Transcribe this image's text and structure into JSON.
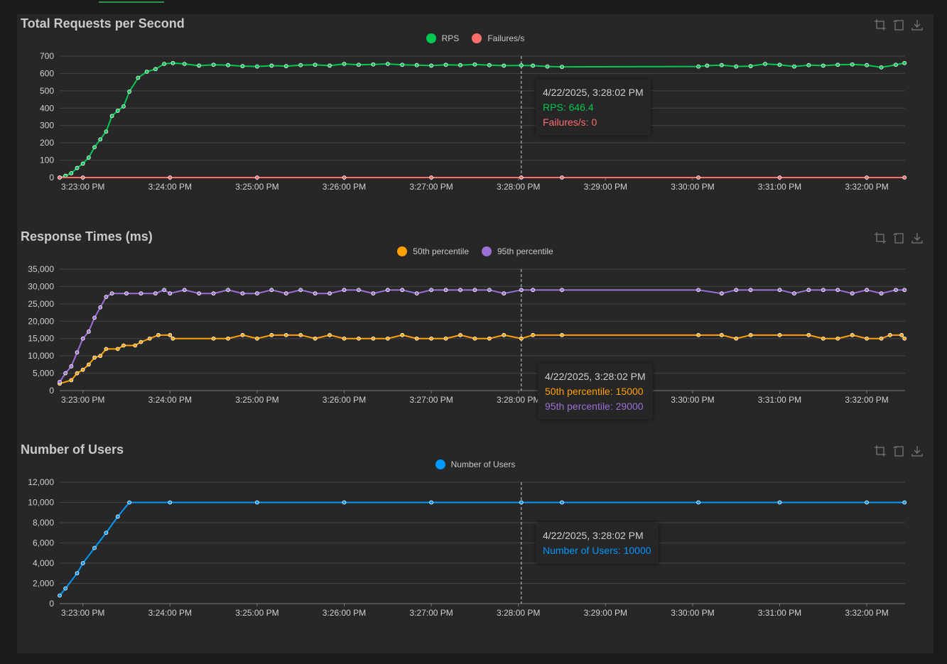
{
  "colors": {
    "rps": "#00c853",
    "failures": "#ff6d6d",
    "p50": "#ffa000",
    "p95": "#9c6fd6",
    "users": "#0099ff",
    "grid": "#444444",
    "axis": "#d0d0d0"
  },
  "toolbox": {
    "zoom": "zoom-icon",
    "restore": "restore-icon",
    "save": "download-icon"
  },
  "charts": [
    {
      "title": "Total Requests per Second",
      "legend": [
        "RPS",
        "Failures/s"
      ],
      "tooltip": {
        "time": "4/22/2025, 3:28:02 PM",
        "lines": [
          "RPS: 646.4",
          "Failures/s: 0"
        ]
      }
    },
    {
      "title": "Response Times (ms)",
      "legend": [
        "50th percentile",
        "95th percentile"
      ],
      "tooltip": {
        "time": "4/22/2025, 3:28:02 PM",
        "lines": [
          "50th percentile: 15000",
          "95th percentile: 29000"
        ]
      }
    },
    {
      "title": "Number of Users",
      "legend": [
        "Number of Users"
      ],
      "tooltip": {
        "time": "4/22/2025, 3:28:02 PM",
        "lines": [
          "Number of Users: 10000"
        ]
      }
    }
  ],
  "chart_data": [
    {
      "type": "line",
      "title": "Total Requests per Second",
      "x_ticks": [
        "3:23:00 PM",
        "3:24:00 PM",
        "3:25:00 PM",
        "3:26:00 PM",
        "3:27:00 PM",
        "3:28:00 PM",
        "3:29:00 PM",
        "3:30:00 PM",
        "3:31:00 PM",
        "3:32:00 PM"
      ],
      "y_ticks": [
        "0",
        "100",
        "200",
        "300",
        "400",
        "500",
        "600",
        "700"
      ],
      "ylim": [
        0,
        700
      ],
      "crosshair_time": "3:28:02 PM",
      "series": [
        {
          "name": "RPS",
          "color": "#00c853",
          "points": [
            [
              "3:22:44 PM",
              0
            ],
            [
              "3:22:48 PM",
              10
            ],
            [
              "3:22:52 PM",
              25
            ],
            [
              "3:22:56 PM",
              55
            ],
            [
              "3:23:00 PM",
              80
            ],
            [
              "3:23:04 PM",
              115
            ],
            [
              "3:23:08 PM",
              175
            ],
            [
              "3:23:12 PM",
              220
            ],
            [
              "3:23:16 PM",
              265
            ],
            [
              "3:23:20 PM",
              355
            ],
            [
              "3:23:24 PM",
              385
            ],
            [
              "3:23:28 PM",
              410
            ],
            [
              "3:23:32 PM",
              495
            ],
            [
              "3:23:38 PM",
              575
            ],
            [
              "3:23:44 PM",
              610
            ],
            [
              "3:23:50 PM",
              625
            ],
            [
              "3:23:56 PM",
              655
            ],
            [
              "3:24:02 PM",
              660
            ],
            [
              "3:24:10 PM",
              655
            ],
            [
              "3:24:20 PM",
              645
            ],
            [
              "3:24:30 PM",
              650
            ],
            [
              "3:24:40 PM",
              648
            ],
            [
              "3:24:50 PM",
              642
            ],
            [
              "3:25:00 PM",
              640
            ],
            [
              "3:25:10 PM",
              645
            ],
            [
              "3:25:20 PM",
              642
            ],
            [
              "3:25:30 PM",
              648
            ],
            [
              "3:25:40 PM",
              650
            ],
            [
              "3:25:50 PM",
              645
            ],
            [
              "3:26:00 PM",
              655
            ],
            [
              "3:26:10 PM",
              650
            ],
            [
              "3:26:20 PM",
              652
            ],
            [
              "3:26:30 PM",
              655
            ],
            [
              "3:26:40 PM",
              650
            ],
            [
              "3:26:50 PM",
              648
            ],
            [
              "3:27:00 PM",
              645
            ],
            [
              "3:27:10 PM",
              650
            ],
            [
              "3:27:20 PM",
              648
            ],
            [
              "3:27:30 PM",
              652
            ],
            [
              "3:27:40 PM",
              648
            ],
            [
              "3:27:50 PM",
              645
            ],
            [
              "3:28:02 PM",
              646.4
            ],
            [
              "3:28:10 PM",
              645
            ],
            [
              "3:28:20 PM",
              640
            ],
            [
              "3:28:30 PM",
              638
            ],
            [
              "3:30:04 PM",
              640
            ],
            [
              "3:30:10 PM",
              645
            ],
            [
              "3:30:20 PM",
              648
            ],
            [
              "3:30:30 PM",
              640
            ],
            [
              "3:30:40 PM",
              642
            ],
            [
              "3:30:50 PM",
              655
            ],
            [
              "3:31:00 PM",
              650
            ],
            [
              "3:31:10 PM",
              640
            ],
            [
              "3:31:20 PM",
              648
            ],
            [
              "3:31:30 PM",
              645
            ],
            [
              "3:31:40 PM",
              650
            ],
            [
              "3:31:50 PM",
              652
            ],
            [
              "3:32:00 PM",
              648
            ],
            [
              "3:32:10 PM",
              635
            ],
            [
              "3:32:20 PM",
              650
            ],
            [
              "3:32:26 PM",
              660
            ]
          ]
        },
        {
          "name": "Failures/s",
          "color": "#ff6d6d",
          "points": [
            [
              "3:22:44 PM",
              0
            ],
            [
              "3:23:00 PM",
              0
            ],
            [
              "3:24:00 PM",
              0
            ],
            [
              "3:25:00 PM",
              0
            ],
            [
              "3:26:00 PM",
              0
            ],
            [
              "3:27:00 PM",
              0
            ],
            [
              "3:28:02 PM",
              0
            ],
            [
              "3:28:30 PM",
              0
            ],
            [
              "3:30:04 PM",
              0
            ],
            [
              "3:31:00 PM",
              0
            ],
            [
              "3:32:00 PM",
              0
            ],
            [
              "3:32:26 PM",
              0
            ]
          ]
        }
      ]
    },
    {
      "type": "line",
      "title": "Response Times (ms)",
      "x_ticks": [
        "3:23:00 PM",
        "3:24:00 PM",
        "3:25:00 PM",
        "3:26:00 PM",
        "3:27:00 PM",
        "3:28:00 PM",
        "3:29:00 PM",
        "3:30:00 PM",
        "3:31:00 PM",
        "3:32:00 PM"
      ],
      "y_ticks": [
        "0",
        "5,000",
        "10,000",
        "15,000",
        "20,000",
        "25,000",
        "30,000",
        "35,000"
      ],
      "ylim": [
        0,
        35000
      ],
      "crosshair_time": "3:28:02 PM",
      "series": [
        {
          "name": "50th percentile",
          "color": "#ffa000",
          "points": [
            [
              "3:22:44 PM",
              2000
            ],
            [
              "3:22:52 PM",
              3000
            ],
            [
              "3:22:56 PM",
              5000
            ],
            [
              "3:23:00 PM",
              6000
            ],
            [
              "3:23:04 PM",
              7500
            ],
            [
              "3:23:08 PM",
              9500
            ],
            [
              "3:23:12 PM",
              10000
            ],
            [
              "3:23:16 PM",
              12000
            ],
            [
              "3:23:24 PM",
              12000
            ],
            [
              "3:23:28 PM",
              13000
            ],
            [
              "3:23:36 PM",
              13000
            ],
            [
              "3:23:40 PM",
              14000
            ],
            [
              "3:23:46 PM",
              15000
            ],
            [
              "3:23:52 PM",
              16000
            ],
            [
              "3:24:00 PM",
              16000
            ],
            [
              "3:24:02 PM",
              15000
            ],
            [
              "3:24:30 PM",
              15000
            ],
            [
              "3:24:40 PM",
              15000
            ],
            [
              "3:24:50 PM",
              16000
            ],
            [
              "3:25:00 PM",
              15000
            ],
            [
              "3:25:10 PM",
              16000
            ],
            [
              "3:25:20 PM",
              16000
            ],
            [
              "3:25:30 PM",
              16000
            ],
            [
              "3:25:40 PM",
              15000
            ],
            [
              "3:25:50 PM",
              16000
            ],
            [
              "3:26:00 PM",
              15000
            ],
            [
              "3:26:10 PM",
              15000
            ],
            [
              "3:26:20 PM",
              15000
            ],
            [
              "3:26:30 PM",
              15000
            ],
            [
              "3:26:40 PM",
              16000
            ],
            [
              "3:26:50 PM",
              15000
            ],
            [
              "3:27:00 PM",
              15000
            ],
            [
              "3:27:10 PM",
              15000
            ],
            [
              "3:27:20 PM",
              16000
            ],
            [
              "3:27:30 PM",
              15000
            ],
            [
              "3:27:40 PM",
              15000
            ],
            [
              "3:27:50 PM",
              16000
            ],
            [
              "3:28:02 PM",
              15000
            ],
            [
              "3:28:10 PM",
              16000
            ],
            [
              "3:28:30 PM",
              16000
            ],
            [
              "3:30:04 PM",
              16000
            ],
            [
              "3:30:20 PM",
              16000
            ],
            [
              "3:30:30 PM",
              15000
            ],
            [
              "3:30:40 PM",
              16000
            ],
            [
              "3:31:00 PM",
              16000
            ],
            [
              "3:31:20 PM",
              16000
            ],
            [
              "3:31:30 PM",
              15000
            ],
            [
              "3:31:40 PM",
              15000
            ],
            [
              "3:31:50 PM",
              16000
            ],
            [
              "3:32:00 PM",
              15000
            ],
            [
              "3:32:10 PM",
              15000
            ],
            [
              "3:32:16 PM",
              16000
            ],
            [
              "3:32:24 PM",
              16000
            ],
            [
              "3:32:26 PM",
              15000
            ]
          ]
        },
        {
          "name": "95th percentile",
          "color": "#9c6fd6",
          "points": [
            [
              "3:22:44 PM",
              2500
            ],
            [
              "3:22:48 PM",
              5000
            ],
            [
              "3:22:52 PM",
              7000
            ],
            [
              "3:22:56 PM",
              11000
            ],
            [
              "3:23:00 PM",
              15000
            ],
            [
              "3:23:04 PM",
              17000
            ],
            [
              "3:23:08 PM",
              21000
            ],
            [
              "3:23:12 PM",
              24000
            ],
            [
              "3:23:16 PM",
              27000
            ],
            [
              "3:23:20 PM",
              28000
            ],
            [
              "3:23:30 PM",
              28000
            ],
            [
              "3:23:40 PM",
              28000
            ],
            [
              "3:23:50 PM",
              28000
            ],
            [
              "3:23:56 PM",
              29000
            ],
            [
              "3:24:00 PM",
              28000
            ],
            [
              "3:24:10 PM",
              29000
            ],
            [
              "3:24:20 PM",
              28000
            ],
            [
              "3:24:30 PM",
              28000
            ],
            [
              "3:24:40 PM",
              29000
            ],
            [
              "3:24:50 PM",
              28000
            ],
            [
              "3:25:00 PM",
              28000
            ],
            [
              "3:25:10 PM",
              29000
            ],
            [
              "3:25:20 PM",
              28000
            ],
            [
              "3:25:30 PM",
              29000
            ],
            [
              "3:25:40 PM",
              28000
            ],
            [
              "3:25:50 PM",
              28000
            ],
            [
              "3:26:00 PM",
              29000
            ],
            [
              "3:26:10 PM",
              29000
            ],
            [
              "3:26:20 PM",
              28000
            ],
            [
              "3:26:30 PM",
              29000
            ],
            [
              "3:26:40 PM",
              29000
            ],
            [
              "3:26:50 PM",
              28000
            ],
            [
              "3:27:00 PM",
              29000
            ],
            [
              "3:27:10 PM",
              29000
            ],
            [
              "3:27:20 PM",
              29000
            ],
            [
              "3:27:30 PM",
              29000
            ],
            [
              "3:27:40 PM",
              29000
            ],
            [
              "3:27:50 PM",
              28000
            ],
            [
              "3:28:02 PM",
              29000
            ],
            [
              "3:28:10 PM",
              29000
            ],
            [
              "3:28:30 PM",
              29000
            ],
            [
              "3:30:04 PM",
              29000
            ],
            [
              "3:30:20 PM",
              28000
            ],
            [
              "3:30:30 PM",
              29000
            ],
            [
              "3:30:40 PM",
              29000
            ],
            [
              "3:31:00 PM",
              29000
            ],
            [
              "3:31:10 PM",
              28000
            ],
            [
              "3:31:20 PM",
              29000
            ],
            [
              "3:31:30 PM",
              29000
            ],
            [
              "3:31:40 PM",
              29000
            ],
            [
              "3:31:50 PM",
              28000
            ],
            [
              "3:32:00 PM",
              29000
            ],
            [
              "3:32:10 PM",
              28000
            ],
            [
              "3:32:20 PM",
              29000
            ],
            [
              "3:32:26 PM",
              29000
            ]
          ]
        }
      ]
    },
    {
      "type": "line",
      "title": "Number of Users",
      "x_ticks": [
        "3:23:00 PM",
        "3:24:00 PM",
        "3:25:00 PM",
        "3:26:00 PM",
        "3:27:00 PM",
        "3:28:00 PM",
        "3:29:00 PM",
        "3:30:00 PM",
        "3:31:00 PM",
        "3:32:00 PM"
      ],
      "y_ticks": [
        "0",
        "2,000",
        "4,000",
        "6,000",
        "8,000",
        "10,000",
        "12,000"
      ],
      "ylim": [
        0,
        12000
      ],
      "crosshair_time": "3:28:02 PM",
      "series": [
        {
          "name": "Number of Users",
          "color": "#0099ff",
          "points": [
            [
              "3:22:44 PM",
              800
            ],
            [
              "3:22:48 PM",
              1500
            ],
            [
              "3:22:56 PM",
              3000
            ],
            [
              "3:23:00 PM",
              4000
            ],
            [
              "3:23:08 PM",
              5500
            ],
            [
              "3:23:16 PM",
              7000
            ],
            [
              "3:23:24 PM",
              8600
            ],
            [
              "3:23:32 PM",
              10000
            ],
            [
              "3:24:00 PM",
              10000
            ],
            [
              "3:25:00 PM",
              10000
            ],
            [
              "3:26:00 PM",
              10000
            ],
            [
              "3:27:00 PM",
              10000
            ],
            [
              "3:28:02 PM",
              10000
            ],
            [
              "3:28:30 PM",
              10000
            ],
            [
              "3:30:04 PM",
              10000
            ],
            [
              "3:31:00 PM",
              10000
            ],
            [
              "3:32:00 PM",
              10000
            ],
            [
              "3:32:26 PM",
              10000
            ]
          ]
        }
      ]
    }
  ]
}
